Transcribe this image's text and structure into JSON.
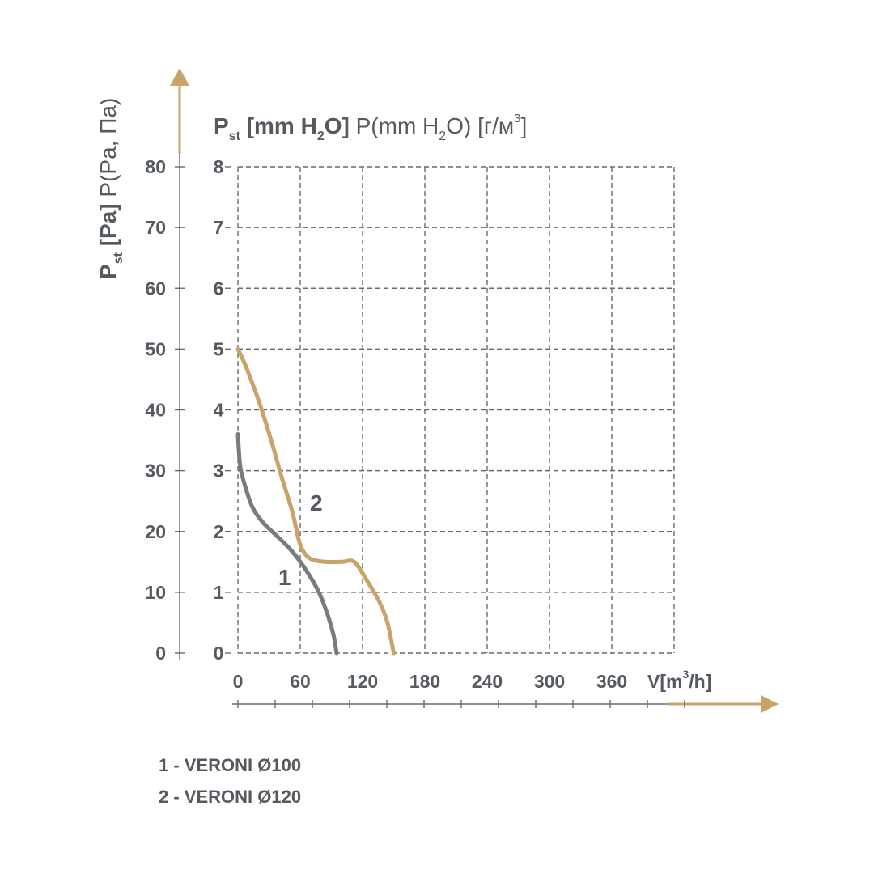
{
  "chart_data": {
    "type": "line",
    "xlabel": {
      "main": "V[m",
      "sup": "3",
      "end": "/h]"
    },
    "ylabel_left": {
      "p": "P",
      "sub": "st",
      "unit": " [Pa]",
      "alt": " P(Pa, Па)"
    },
    "ylabel_top": {
      "p": "P",
      "sub": "st",
      "unit": " [mm H",
      "sub2": "2",
      "unit_end": "O]",
      "alt1": " P(mm H",
      "alt_sub": "2",
      "alt2": "O) [г/м",
      "alt_sup": "3",
      "alt3": "]"
    },
    "x_ticks": [
      "0",
      "60",
      "120",
      "180",
      "240",
      "300",
      "360"
    ],
    "y_ticks_pa": [
      "0",
      "10",
      "20",
      "30",
      "40",
      "50",
      "60",
      "70",
      "80"
    ],
    "y_ticks_mm": [
      "0",
      "1",
      "2",
      "3",
      "4",
      "5",
      "6",
      "7",
      "8"
    ],
    "xlim": [
      0,
      420
    ],
    "ylim": [
      0,
      80
    ],
    "grid": true,
    "series": [
      {
        "name": "1",
        "color": "#7a7b7e",
        "points": [
          [
            0,
            36
          ],
          [
            2,
            31
          ],
          [
            6,
            28
          ],
          [
            14,
            24
          ],
          [
            24,
            21.5
          ],
          [
            36,
            19.5
          ],
          [
            48,
            17.5
          ],
          [
            58,
            15.5
          ],
          [
            68,
            13
          ],
          [
            78,
            10
          ],
          [
            86,
            6.5
          ],
          [
            92,
            3
          ],
          [
            95,
            0
          ]
        ]
      },
      {
        "name": "2",
        "color": "#c9a46a",
        "points": [
          [
            0,
            50
          ],
          [
            8,
            47
          ],
          [
            20,
            41.5
          ],
          [
            32,
            35
          ],
          [
            42,
            29
          ],
          [
            52,
            23.5
          ],
          [
            58,
            19
          ],
          [
            62,
            17
          ],
          [
            70,
            15.5
          ],
          [
            84,
            15
          ],
          [
            100,
            15
          ],
          [
            112,
            15
          ],
          [
            124,
            12
          ],
          [
            136,
            8.5
          ],
          [
            144,
            5
          ],
          [
            150,
            0
          ]
        ]
      }
    ],
    "legend": [
      "1 - VERONI Ø100",
      "2 - VERONI Ø120"
    ]
  }
}
